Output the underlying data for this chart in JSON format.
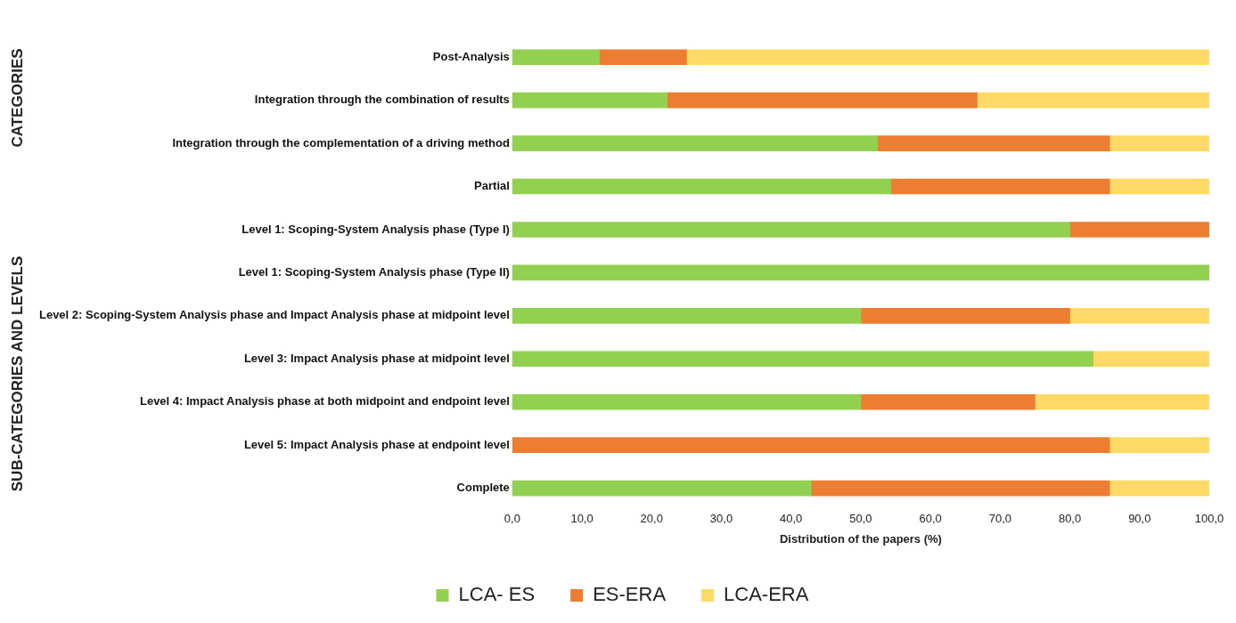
{
  "chart_data": {
    "type": "bar",
    "orientation": "horizontal",
    "stacked": true,
    "xlabel": "Distribution of the papers (%)",
    "categories": [
      "Post-Analysis",
      "Integration through the combination of results",
      "Integration through the complementation of a driving method",
      "Partial",
      "Level 1: Scoping-System Analysis phase (Type I)",
      "Level 1: Scoping-System Analysis phase (Type II)",
      "Level 2: Scoping-System Analysis phase and Impact Analysis phase at midpoint level",
      "Level 3: Impact Analysis phase at midpoint level",
      "Level 4: Impact Analysis phase at both midpoint and endpoint level",
      "Level 5: Impact Analysis phase at endpoint level",
      "Complete"
    ],
    "series": [
      {
        "name": "LCA- ES",
        "color": "#92d050",
        "values": [
          12.5,
          22.2,
          52.4,
          54.3,
          80,
          100,
          50,
          83.3,
          50,
          0,
          42.9
        ]
      },
      {
        "name": "ES-ERA",
        "color": "#ed7d31",
        "values": [
          12.5,
          44.5,
          33.3,
          31.4,
          20,
          0,
          30,
          0,
          25,
          85.7,
          42.8
        ]
      },
      {
        "name": "LCA-ERA",
        "color": "#ffd966",
        "values": [
          75,
          33.3,
          14.3,
          14.3,
          0,
          0,
          20,
          16.7,
          25,
          14.3,
          14.3
        ]
      }
    ],
    "xlim": [
      0,
      100
    ],
    "xticks": [
      {
        "value": 0,
        "label": "0,0"
      },
      {
        "value": 10,
        "label": "10,0"
      },
      {
        "value": 20,
        "label": "20,0"
      },
      {
        "value": 30,
        "label": "30,0"
      },
      {
        "value": 40,
        "label": "40,0"
      },
      {
        "value": 50,
        "label": "50,0"
      },
      {
        "value": 60,
        "label": "60,0"
      },
      {
        "value": 70,
        "label": "70,0"
      },
      {
        "value": 80,
        "label": "80,0"
      },
      {
        "value": 90,
        "label": "90,0"
      },
      {
        "value": 100,
        "label": "100,0"
      }
    ],
    "legend": "bottom",
    "grid": false,
    "annotations": [
      "CATEGORIES",
      "SUB-CATEGORIES AND LEVELS"
    ]
  }
}
